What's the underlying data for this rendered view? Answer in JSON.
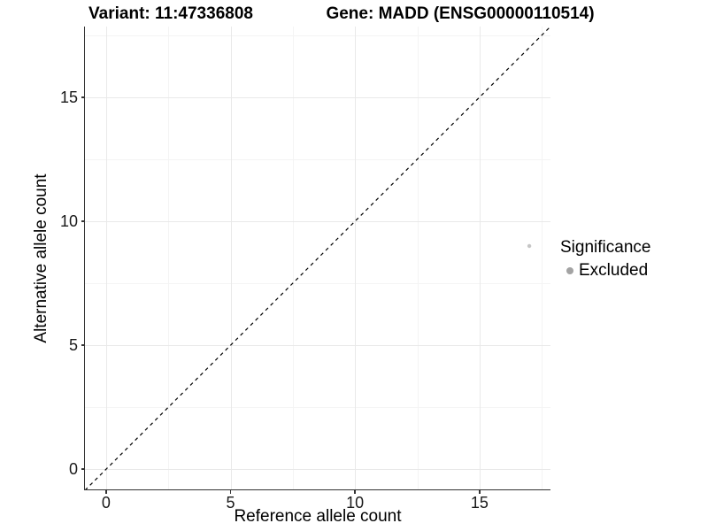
{
  "figure": {
    "titles": {
      "variant": "Variant: 11:47336808",
      "gene": "Gene: MADD (ENSG00000110514)"
    },
    "axes": {
      "x_label": "Reference allele count",
      "y_label": "Alternative allele count"
    },
    "legend": {
      "title": "Significance",
      "items": [
        {
          "label": "Excluded",
          "key_color": "#a3a3a3"
        }
      ]
    }
  },
  "chart_data": {
    "type": "scatter",
    "title": "Variant: 11:47336808 | Gene: MADD (ENSG00000110514)",
    "xlabel": "Reference allele count",
    "ylabel": "Alternative allele count",
    "xlim": [
      -0.85,
      17.85
    ],
    "ylim": [
      -0.85,
      17.85
    ],
    "x_ticks": [
      0,
      5,
      10,
      15
    ],
    "y_ticks": [
      0,
      5,
      10,
      15
    ],
    "x_minor_breaks": [
      2.5,
      7.5,
      12.5,
      17.5
    ],
    "y_minor_breaks": [
      2.5,
      7.5,
      12.5,
      17.5
    ],
    "grid": true,
    "legend_position": "right",
    "series": [
      {
        "name": "Excluded",
        "color": "#c6c6c6",
        "point_radius": 2.2,
        "points": [
          {
            "x": 17,
            "y": 9
          }
        ]
      }
    ],
    "reference_line": {
      "label": "identity y=x",
      "style": "dashed",
      "color": "#000000",
      "x0": -0.85,
      "y0": -0.85,
      "x1": 17.85,
      "y1": 17.85
    },
    "colors": {
      "grid_major": "#e9e9e9",
      "grid_minor": "#f4f4f4",
      "axis_line": "#333333",
      "tick_label": "#1a1a1a"
    }
  }
}
